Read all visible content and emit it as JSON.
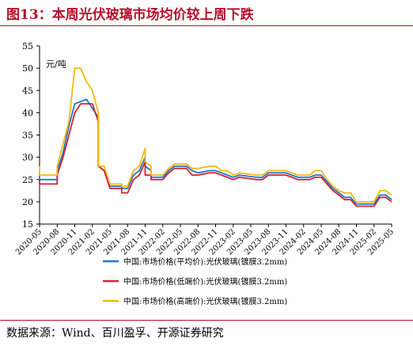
{
  "title": "图13：本周光伏玻璃市场均价较上周下跌",
  "source": "数据来源：Wind、百川盈孚、开源证券研究",
  "chart_data": {
    "type": "line",
    "unit_label": "元/吨",
    "ylim": [
      15,
      55
    ],
    "yticks": [
      15,
      20,
      25,
      30,
      35,
      40,
      45,
      50,
      55
    ],
    "xticks": [
      "2020-05",
      "2020-08",
      "2020-11",
      "2021-02",
      "2021-05",
      "2021-08",
      "2021-11",
      "2022-02",
      "2022-05",
      "2022-08",
      "2022-11",
      "2023-02",
      "2023-05",
      "2023-08",
      "2023-11",
      "2024-02",
      "2024-05",
      "2024-08",
      "2024-11",
      "2025-02",
      "2025-05"
    ],
    "xlim": [
      "2020-05",
      "2025-05"
    ],
    "grid": false,
    "legend_position": "bottom",
    "series": [
      {
        "name": "中国:市场价格(平均价):光伏玻璃(镀膜3.2mm)",
        "color": "#1f77c9",
        "points": [
          [
            "2020-05",
            26
          ],
          [
            "2020-05",
            25
          ],
          [
            "2020-08",
            25
          ],
          [
            "2020-08",
            27
          ],
          [
            "2020-09",
            31
          ],
          [
            "2020-10",
            37
          ],
          [
            "2020-11",
            42
          ],
          [
            "2021-01",
            43
          ],
          [
            "2021-02",
            41
          ],
          [
            "2021-03",
            39
          ],
          [
            "2021-03",
            28
          ],
          [
            "2021-04",
            27
          ],
          [
            "2021-05",
            23.5
          ],
          [
            "2021-07",
            23.5
          ],
          [
            "2021-07",
            23
          ],
          [
            "2021-08",
            23
          ],
          [
            "2021-09",
            26
          ],
          [
            "2021-10",
            27
          ],
          [
            "2021-11",
            30
          ],
          [
            "2021-11",
            28
          ],
          [
            "2021-12",
            27
          ],
          [
            "2021-12",
            25.5
          ],
          [
            "2022-02",
            25.5
          ],
          [
            "2022-03",
            27
          ],
          [
            "2022-04",
            28
          ],
          [
            "2022-06",
            28
          ],
          [
            "2022-07",
            27
          ],
          [
            "2022-08",
            26.5
          ],
          [
            "2022-10",
            27
          ],
          [
            "2022-11",
            27
          ],
          [
            "2022-12",
            26.5
          ],
          [
            "2023-01",
            26
          ],
          [
            "2023-02",
            25.5
          ],
          [
            "2023-03",
            26
          ],
          [
            "2023-06",
            25.5
          ],
          [
            "2023-07",
            25.5
          ],
          [
            "2023-08",
            26.5
          ],
          [
            "2023-09",
            26.5
          ],
          [
            "2023-10",
            26.5
          ],
          [
            "2023-11",
            26.5
          ],
          [
            "2023-12",
            26
          ],
          [
            "2024-01",
            25.5
          ],
          [
            "2024-03",
            25.5
          ],
          [
            "2024-04",
            26
          ],
          [
            "2024-05",
            26
          ],
          [
            "2024-06",
            24.5
          ],
          [
            "2024-07",
            23
          ],
          [
            "2024-08",
            22
          ],
          [
            "2024-09",
            21
          ],
          [
            "2024-10",
            21
          ],
          [
            "2024-11",
            19.5
          ],
          [
            "2024-12",
            19.5
          ],
          [
            "2025-02",
            19.5
          ],
          [
            "2025-03",
            21.5
          ],
          [
            "2025-04",
            21.5
          ],
          [
            "2025-05",
            20.5
          ]
        ]
      },
      {
        "name": "中国:市场价格(低端价):光伏玻璃(镀膜3.2mm)",
        "color": "#d6222e",
        "points": [
          [
            "2020-05",
            25
          ],
          [
            "2020-05",
            24
          ],
          [
            "2020-08",
            24
          ],
          [
            "2020-08",
            26
          ],
          [
            "2020-09",
            30
          ],
          [
            "2020-10",
            35
          ],
          [
            "2020-11",
            40
          ],
          [
            "2020-12",
            42
          ],
          [
            "2021-02",
            42
          ],
          [
            "2021-03",
            38
          ],
          [
            "2021-03",
            28
          ],
          [
            "2021-04",
            27
          ],
          [
            "2021-05",
            23
          ],
          [
            "2021-07",
            23
          ],
          [
            "2021-07",
            22
          ],
          [
            "2021-08",
            22
          ],
          [
            "2021-09",
            25
          ],
          [
            "2021-10",
            26
          ],
          [
            "2021-11",
            29
          ],
          [
            "2021-11",
            26
          ],
          [
            "2021-12",
            26
          ],
          [
            "2021-12",
            25
          ],
          [
            "2022-02",
            25
          ],
          [
            "2022-03",
            26.5
          ],
          [
            "2022-04",
            27.5
          ],
          [
            "2022-06",
            27.5
          ],
          [
            "2022-07",
            26
          ],
          [
            "2022-08",
            26
          ],
          [
            "2022-10",
            26.5
          ],
          [
            "2022-11",
            26.5
          ],
          [
            "2022-12",
            26
          ],
          [
            "2023-01",
            25.5
          ],
          [
            "2023-02",
            25
          ],
          [
            "2023-03",
            25.5
          ],
          [
            "2023-06",
            25
          ],
          [
            "2023-07",
            25
          ],
          [
            "2023-08",
            26
          ],
          [
            "2023-09",
            26
          ],
          [
            "2023-11",
            26
          ],
          [
            "2023-12",
            25.5
          ],
          [
            "2024-01",
            25
          ],
          [
            "2024-03",
            25
          ],
          [
            "2024-04",
            25.5
          ],
          [
            "2024-05",
            25.5
          ],
          [
            "2024-06",
            24
          ],
          [
            "2024-07",
            22.5
          ],
          [
            "2024-08",
            21.5
          ],
          [
            "2024-09",
            20.5
          ],
          [
            "2024-10",
            20.5
          ],
          [
            "2024-11",
            19
          ],
          [
            "2024-12",
            19
          ],
          [
            "2025-02",
            19
          ],
          [
            "2025-03",
            21
          ],
          [
            "2025-04",
            21
          ],
          [
            "2025-05",
            20
          ]
        ]
      },
      {
        "name": "中国:市场价格(高端价):光伏玻璃(镀膜3.2mm)",
        "color": "#f2b90f",
        "points": [
          [
            "2020-05",
            28
          ],
          [
            "2020-05",
            26
          ],
          [
            "2020-08",
            26
          ],
          [
            "2020-08",
            28
          ],
          [
            "2020-09",
            33
          ],
          [
            "2020-10",
            38
          ],
          [
            "2020-11",
            50
          ],
          [
            "2020-12",
            50
          ],
          [
            "2021-01",
            47
          ],
          [
            "2021-02",
            45
          ],
          [
            "2021-03",
            40
          ],
          [
            "2021-03",
            28
          ],
          [
            "2021-04",
            28
          ],
          [
            "2021-05",
            24
          ],
          [
            "2021-07",
            24
          ],
          [
            "2021-07",
            23.5
          ],
          [
            "2021-08",
            23.5
          ],
          [
            "2021-09",
            27
          ],
          [
            "2021-10",
            28
          ],
          [
            "2021-11",
            32
          ],
          [
            "2021-11",
            29
          ],
          [
            "2021-12",
            28
          ],
          [
            "2021-12",
            26
          ],
          [
            "2022-02",
            26
          ],
          [
            "2022-03",
            27.5
          ],
          [
            "2022-04",
            28.5
          ],
          [
            "2022-06",
            28.5
          ],
          [
            "2022-07",
            27.5
          ],
          [
            "2022-08",
            27.5
          ],
          [
            "2022-10",
            28
          ],
          [
            "2022-11",
            28
          ],
          [
            "2022-12",
            27
          ],
          [
            "2023-01",
            27
          ],
          [
            "2023-02",
            26
          ],
          [
            "2023-03",
            26.5
          ],
          [
            "2023-06",
            26
          ],
          [
            "2023-07",
            26
          ],
          [
            "2023-08",
            27
          ],
          [
            "2023-09",
            27
          ],
          [
            "2023-11",
            27
          ],
          [
            "2023-12",
            26.5
          ],
          [
            "2024-01",
            26
          ],
          [
            "2024-03",
            26
          ],
          [
            "2024-04",
            27
          ],
          [
            "2024-05",
            27
          ],
          [
            "2024-06",
            25
          ],
          [
            "2024-07",
            23.5
          ],
          [
            "2024-08",
            22.5
          ],
          [
            "2024-09",
            22
          ],
          [
            "2024-10",
            22
          ],
          [
            "2024-11",
            20
          ],
          [
            "2024-12",
            20
          ],
          [
            "2025-02",
            20
          ],
          [
            "2025-03",
            22.5
          ],
          [
            "2025-04",
            22.5
          ],
          [
            "2025-05",
            21.5
          ]
        ]
      }
    ]
  }
}
